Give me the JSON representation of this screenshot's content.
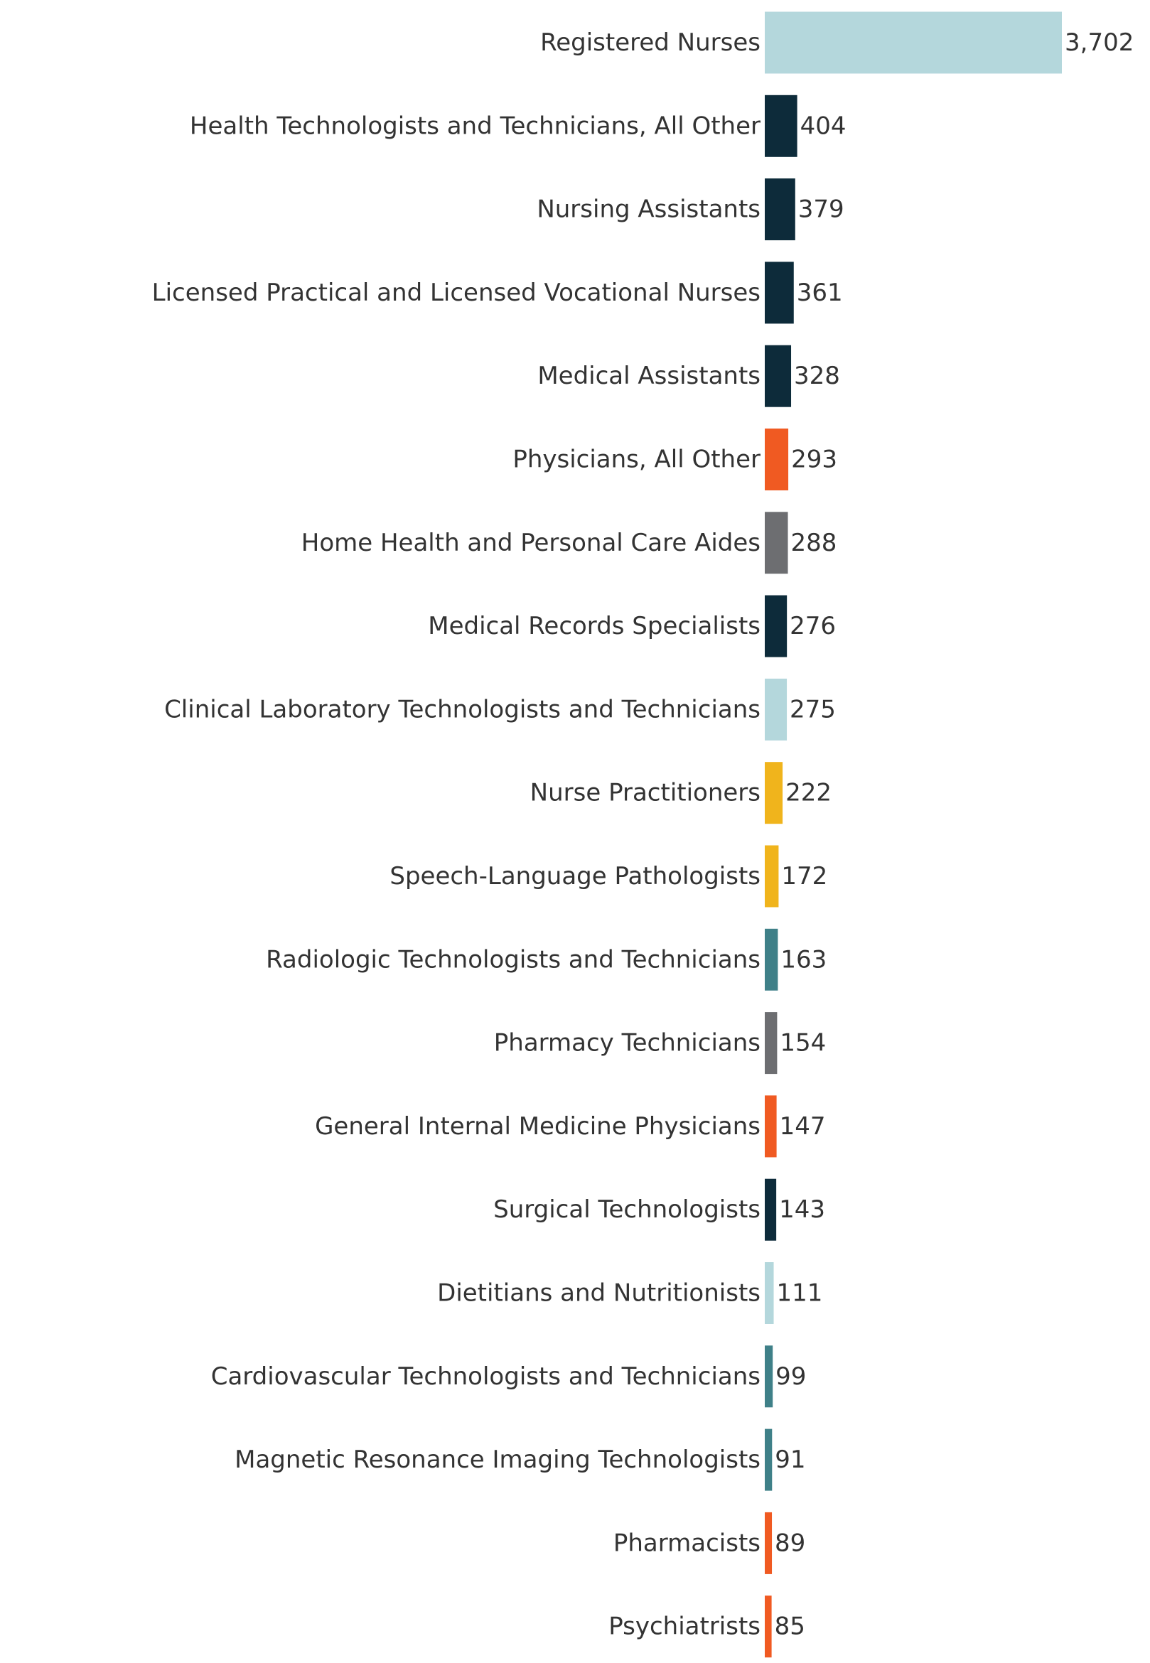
{
  "chart_data": {
    "type": "bar",
    "orientation": "horizontal",
    "title": "",
    "xlabel": "",
    "ylabel": "",
    "xlim": [
      0,
      3702
    ],
    "grid": false,
    "legend": "none",
    "categories": [
      "Registered Nurses",
      "Health Technologists and Technicians, All Other",
      "Nursing Assistants",
      "Licensed Practical and Licensed Vocational Nurses",
      "Medical Assistants",
      "Physicians, All Other",
      "Home Health and Personal Care Aides",
      "Medical Records Specialists",
      "Clinical Laboratory Technologists and Technicians",
      "Nurse Practitioners",
      "Speech-Language Pathologists",
      "Radiologic Technologists and Technicians",
      "Pharmacy Technicians",
      "General Internal Medicine Physicians",
      "Surgical Technologists",
      "Dietitians and Nutritionists",
      "Cardiovascular Technologists and Technicians",
      "Magnetic Resonance Imaging Technologists",
      "Pharmacists",
      "Psychiatrists"
    ],
    "values": [
      3702,
      404,
      379,
      361,
      328,
      293,
      288,
      276,
      275,
      222,
      172,
      163,
      154,
      147,
      143,
      111,
      99,
      91,
      89,
      85
    ],
    "value_labels": [
      "3,702",
      "404",
      "379",
      "361",
      "328",
      "293",
      "288",
      "276",
      "275",
      "222",
      "172",
      "163",
      "154",
      "147",
      "143",
      "111",
      "99",
      "91",
      "89",
      "85"
    ],
    "colors": [
      "#b4d7dc",
      "#0d2b3a",
      "#0d2b3a",
      "#0d2b3a",
      "#0d2b3a",
      "#f05a22",
      "#6d6e71",
      "#0d2b3a",
      "#b4d7dc",
      "#f0b41c",
      "#f0b41c",
      "#3f8088",
      "#6d6e71",
      "#f05a22",
      "#0d2b3a",
      "#b4d7dc",
      "#3f8088",
      "#3f8088",
      "#f05a22",
      "#f05a22"
    ]
  }
}
